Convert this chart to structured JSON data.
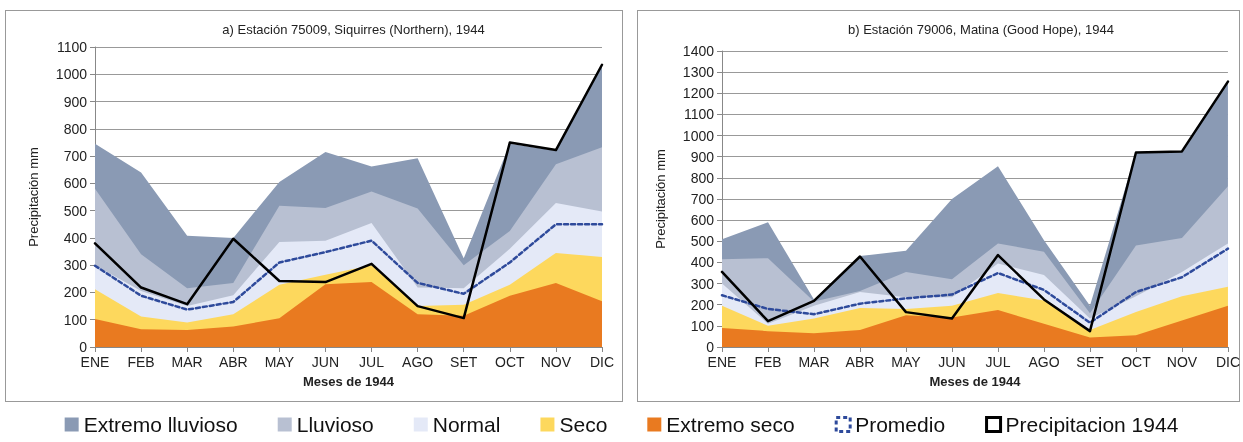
{
  "chart_data": [
    {
      "type": "area",
      "title": "a) Estación 75009, Siquirres (Northern), 1944",
      "xlabel": "Meses de 1944",
      "ylabel": "Precipitación mm",
      "categories": [
        "ENE",
        "FEB",
        "MAR",
        "ABR",
        "MAY",
        "JUN",
        "JUL",
        "AGO",
        "SET",
        "OCT",
        "NOV",
        "DIC"
      ],
      "ylim": [
        0,
        1100
      ],
      "yticks": [
        0,
        100,
        200,
        300,
        400,
        500,
        600,
        700,
        800,
        900,
        1000,
        1100
      ],
      "grid": "y",
      "legend": "bottom",
      "marker": "none",
      "series": [
        {
          "name": "Extremo lluvioso",
          "color": "#8a9ab4",
          "values": [
            745,
            640,
            408,
            400,
            605,
            715,
            662,
            692,
            325,
            745,
            720,
            1035
          ]
        },
        {
          "name": "Lluvioso",
          "color": "#b8c0d2",
          "values": [
            580,
            340,
            215,
            235,
            518,
            510,
            570,
            508,
            300,
            425,
            670,
            732
          ]
        },
        {
          "name": "Normal",
          "color": "#e4e9f7",
          "values": [
            300,
            205,
            150,
            190,
            385,
            390,
            455,
            218,
            215,
            360,
            528,
            497
          ]
        },
        {
          "name": "Seco",
          "color": "#fdd85d",
          "values": [
            212,
            112,
            90,
            120,
            228,
            265,
            300,
            150,
            155,
            228,
            345,
            330
          ]
        },
        {
          "name": "Extremo seco",
          "color": "#e97a20",
          "values": [
            103,
            65,
            62,
            75,
            105,
            230,
            238,
            120,
            115,
            188,
            235,
            168
          ]
        },
        {
          "name": "Promedio",
          "type": "line",
          "line_style": "dashed",
          "color": "#2e4a9b",
          "values": [
            298,
            188,
            137,
            165,
            310,
            348,
            390,
            235,
            195,
            310,
            450,
            450
          ]
        },
        {
          "name": "Precipitacion 1944",
          "type": "line",
          "line_style": "solid",
          "color": "#000000",
          "values": [
            380,
            218,
            157,
            397,
            242,
            238,
            305,
            150,
            106,
            750,
            722,
            1035
          ]
        }
      ]
    },
    {
      "type": "area",
      "title": "b) Estación 79006, Matina (Good Hope), 1944",
      "xlabel": "Meses de 1944",
      "ylabel": "Precipitación mm",
      "categories": [
        "ENE",
        "FEB",
        "MAR",
        "ABR",
        "MAY",
        "JUN",
        "JUL",
        "AGO",
        "SET",
        "OCT",
        "NOV",
        "DIC"
      ],
      "ylim": [
        0,
        1400
      ],
      "yticks": [
        0,
        100,
        200,
        300,
        400,
        500,
        600,
        700,
        800,
        900,
        1000,
        1100,
        1200,
        1300,
        1400
      ],
      "grid": "y",
      "marker": "none",
      "series": [
        {
          "color": "#8a9ab4",
          "values": [
            510,
            590,
            225,
            430,
            455,
            700,
            855,
            505,
            195,
            920,
            925,
            1255
          ]
        },
        {
          "color": "#b8c0d2",
          "values": [
            415,
            420,
            215,
            265,
            355,
            320,
            490,
            450,
            160,
            480,
            515,
            760
          ]
        },
        {
          "color": "#e4e9f7",
          "values": [
            300,
            110,
            195,
            260,
            235,
            235,
            395,
            340,
            135,
            240,
            355,
            490
          ]
        },
        {
          "color": "#fdd85d",
          "values": [
            195,
            100,
            135,
            185,
            180,
            195,
            255,
            220,
            80,
            165,
            240,
            285
          ]
        },
        {
          "color": "#e97a20",
          "values": [
            90,
            75,
            65,
            80,
            150,
            140,
            175,
            110,
            45,
            55,
            125,
            195
          ]
        },
        {
          "type": "line",
          "line_style": "dashed",
          "color": "#2e4a9b",
          "values": [
            245,
            180,
            155,
            205,
            230,
            248,
            350,
            270,
            115,
            260,
            330,
            465
          ]
        },
        {
          "type": "line",
          "line_style": "solid",
          "color": "#000000",
          "values": [
            355,
            122,
            218,
            428,
            165,
            135,
            435,
            225,
            75,
            920,
            925,
            1255
          ]
        }
      ]
    }
  ]
}
